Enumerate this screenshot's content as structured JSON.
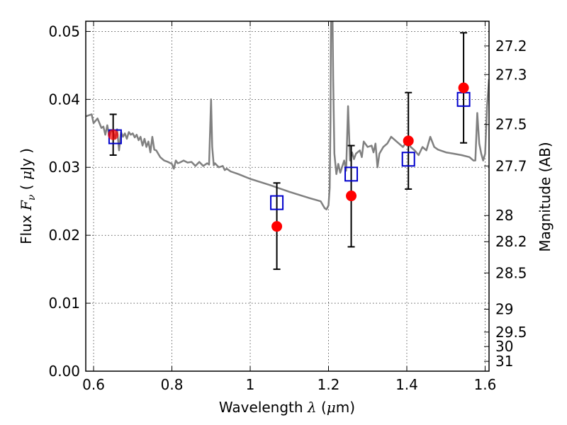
{
  "chart_data": {
    "type": "scatter",
    "xlabel": "Wavelength  λ (μm)",
    "ylabel": "Flux  F_ν  ( μJy )",
    "ylabel_parts": {
      "prefix": "Flux  ",
      "symbol": "F",
      "subscript": "ν",
      "open": "  ( ",
      "mu": "μ",
      "unit": "Jy )"
    },
    "xlabel_parts": {
      "prefix": "Wavelength  ",
      "symbol": "λ",
      "open": " (",
      "mu": "μ",
      "unit": "m)"
    },
    "y2label": "Magnitude (AB)",
    "xlim": [
      0.58,
      1.61
    ],
    "ylim": [
      0.0,
      0.0515
    ],
    "grid": true,
    "x_ticks": [
      {
        "value": 0.6,
        "label": "0.6"
      },
      {
        "value": 0.8,
        "label": "0.8"
      },
      {
        "value": 1.0,
        "label": "1"
      },
      {
        "value": 1.2,
        "label": "1.2"
      },
      {
        "value": 1.4,
        "label": "1.4"
      },
      {
        "value": 1.6,
        "label": "1.6"
      }
    ],
    "y_ticks": [
      {
        "value": 0.0,
        "label": "0.00"
      },
      {
        "value": 0.01,
        "label": "0.01"
      },
      {
        "value": 0.02,
        "label": "0.02"
      },
      {
        "value": 0.03,
        "label": "0.03"
      },
      {
        "value": 0.04,
        "label": "0.04"
      },
      {
        "value": 0.05,
        "label": "0.05"
      }
    ],
    "y2_ticks": [
      {
        "value": 27.2,
        "label": "27.2"
      },
      {
        "value": 27.3,
        "label": "27.3"
      },
      {
        "value": 27.5,
        "label": "27.5"
      },
      {
        "value": 27.7,
        "label": "27.7"
      },
      {
        "value": 28.0,
        "label": "28"
      },
      {
        "value": 28.2,
        "label": "28.2"
      },
      {
        "value": 28.5,
        "label": "28.5"
      },
      {
        "value": 29.0,
        "label": "29"
      },
      {
        "value": 29.5,
        "label": "29.5"
      },
      {
        "value": 30.0,
        "label": "30"
      },
      {
        "value": 31.0,
        "label": "31"
      }
    ],
    "series": [
      {
        "kind": "sed_spectrum",
        "color": "#808080",
        "x": [
          0.58,
          0.595,
          0.6,
          0.61,
          0.62,
          0.625,
          0.63,
          0.635,
          0.64,
          0.645,
          0.65,
          0.655,
          0.66,
          0.665,
          0.67,
          0.675,
          0.68,
          0.685,
          0.69,
          0.695,
          0.7,
          0.705,
          0.71,
          0.715,
          0.72,
          0.725,
          0.73,
          0.735,
          0.74,
          0.745,
          0.75,
          0.755,
          0.76,
          0.77,
          0.78,
          0.79,
          0.8,
          0.805,
          0.81,
          0.815,
          0.82,
          0.83,
          0.84,
          0.85,
          0.86,
          0.87,
          0.88,
          0.89,
          0.895,
          0.9,
          0.903,
          0.907,
          0.91,
          0.92,
          0.93,
          0.935,
          0.94,
          0.95,
          0.97,
          1.0,
          1.05,
          1.1,
          1.15,
          1.18,
          1.19,
          1.195,
          1.2,
          1.203,
          1.205,
          1.206,
          1.208,
          1.21,
          1.212,
          1.215,
          1.22,
          1.225,
          1.23,
          1.24,
          1.245,
          1.25,
          1.255,
          1.26,
          1.265,
          1.27,
          1.28,
          1.285,
          1.29,
          1.3,
          1.31,
          1.315,
          1.32,
          1.325,
          1.33,
          1.34,
          1.35,
          1.36,
          1.37,
          1.38,
          1.39,
          1.4,
          1.41,
          1.42,
          1.43,
          1.44,
          1.45,
          1.46,
          1.47,
          1.48,
          1.5,
          1.52,
          1.54,
          1.56,
          1.57,
          1.575,
          1.58,
          1.585,
          1.59,
          1.595,
          1.6,
          1.605,
          1.61
        ],
        "y": [
          0.0375,
          0.0378,
          0.0365,
          0.0372,
          0.0358,
          0.036,
          0.0348,
          0.0362,
          0.0345,
          0.0355,
          0.0352,
          0.0342,
          0.0356,
          0.0325,
          0.0352,
          0.0345,
          0.035,
          0.0342,
          0.0352,
          0.0348,
          0.035,
          0.0344,
          0.0348,
          0.034,
          0.0345,
          0.0332,
          0.0342,
          0.033,
          0.0338,
          0.0322,
          0.0345,
          0.0326,
          0.0325,
          0.0315,
          0.031,
          0.0308,
          0.0305,
          0.0298,
          0.031,
          0.0306,
          0.0307,
          0.031,
          0.0307,
          0.0308,
          0.0302,
          0.0308,
          0.0302,
          0.0306,
          0.0304,
          0.04,
          0.033,
          0.0303,
          0.0306,
          0.03,
          0.0302,
          0.0296,
          0.0298,
          0.0294,
          0.029,
          0.0283,
          0.0274,
          0.0264,
          0.0255,
          0.025,
          0.024,
          0.0238,
          0.0244,
          0.027,
          0.037,
          0.048,
          0.06,
          0.054,
          0.043,
          0.032,
          0.029,
          0.0305,
          0.0292,
          0.031,
          0.0295,
          0.039,
          0.031,
          0.0322,
          0.0312,
          0.032,
          0.0325,
          0.0315,
          0.0338,
          0.033,
          0.0332,
          0.0322,
          0.0335,
          0.03,
          0.032,
          0.033,
          0.0335,
          0.0345,
          0.034,
          0.0335,
          0.033,
          0.0338,
          0.033,
          0.0325,
          0.0318,
          0.033,
          0.0325,
          0.0345,
          0.033,
          0.0326,
          0.0322,
          0.032,
          0.0318,
          0.0315,
          0.031,
          0.031,
          0.038,
          0.0335,
          0.032,
          0.031,
          0.032,
          0.039,
          0.043
        ]
      },
      {
        "kind": "observed",
        "name": "",
        "color": "#ff0000",
        "x": [
          0.65,
          1.068,
          1.258,
          1.404,
          1.545
        ],
        "y": [
          0.0348,
          0.0213,
          0.0258,
          0.0339,
          0.0417
        ],
        "yerr_low": [
          0.0318,
          0.015,
          0.0183,
          0.0268,
          0.0336
        ],
        "yerr_high": [
          0.0378,
          0.0277,
          0.0332,
          0.041,
          0.0498
        ]
      },
      {
        "kind": "model_bandpass",
        "name": "",
        "color": "#0000cc",
        "x": [
          0.655,
          1.068,
          1.258,
          1.404,
          1.545
        ],
        "y": [
          0.0345,
          0.0248,
          0.029,
          0.0312,
          0.04
        ]
      }
    ]
  }
}
